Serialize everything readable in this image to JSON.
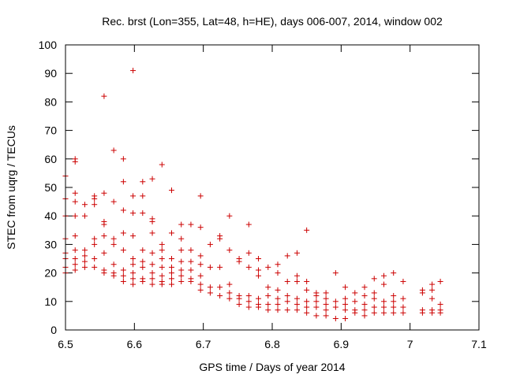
{
  "chart_data": {
    "type": "scatter",
    "title": "Rec. brst (Lon=355, Lat=48, h=HE), days 006-007, 2014, window 002",
    "xlabel": "GPS time / Days of year 2014",
    "ylabel": "STEC from uqrg / TECUs",
    "xlim": [
      6.5,
      7.1
    ],
    "ylim": [
      0,
      100
    ],
    "xticks": [
      "6.5",
      "6.6",
      "6.7",
      "6.8",
      "6.9",
      "7",
      "7.1"
    ],
    "yticks": [
      "0",
      "10",
      "20",
      "30",
      "40",
      "50",
      "60",
      "70",
      "80",
      "90",
      "100"
    ],
    "grid": false,
    "marker": "plus",
    "color": "#cc0000",
    "series": [
      {
        "name": "STEC",
        "x": [
          6.5,
          6.5,
          6.5,
          6.5,
          6.5,
          6.5,
          6.5,
          6.5,
          6.514,
          6.514,
          6.514,
          6.514,
          6.514,
          6.514,
          6.514,
          6.514,
          6.514,
          6.514,
          6.528,
          6.528,
          6.528,
          6.528,
          6.528,
          6.528,
          6.542,
          6.542,
          6.542,
          6.542,
          6.542,
          6.542,
          6.542,
          6.556,
          6.556,
          6.556,
          6.556,
          6.556,
          6.556,
          6.556,
          6.556,
          6.57,
          6.57,
          6.57,
          6.57,
          6.57,
          6.57,
          6.57,
          6.584,
          6.584,
          6.584,
          6.584,
          6.584,
          6.584,
          6.584,
          6.584,
          6.598,
          6.598,
          6.598,
          6.598,
          6.598,
          6.598,
          6.598,
          6.598,
          6.598,
          6.612,
          6.612,
          6.612,
          6.612,
          6.612,
          6.612,
          6.612,
          6.612,
          6.626,
          6.626,
          6.626,
          6.626,
          6.626,
          6.626,
          6.626,
          6.626,
          6.626,
          6.64,
          6.64,
          6.64,
          6.64,
          6.64,
          6.64,
          6.64,
          6.64,
          6.654,
          6.654,
          6.654,
          6.654,
          6.654,
          6.654,
          6.654,
          6.668,
          6.668,
          6.668,
          6.668,
          6.668,
          6.668,
          6.668,
          6.682,
          6.682,
          6.682,
          6.682,
          6.682,
          6.682,
          6.696,
          6.696,
          6.696,
          6.696,
          6.696,
          6.696,
          6.696,
          6.71,
          6.71,
          6.71,
          6.71,
          6.724,
          6.724,
          6.724,
          6.724,
          6.724,
          6.738,
          6.738,
          6.738,
          6.738,
          6.738,
          6.752,
          6.752,
          6.752,
          6.752,
          6.752,
          6.766,
          6.766,
          6.766,
          6.766,
          6.766,
          6.766,
          6.78,
          6.78,
          6.78,
          6.78,
          6.78,
          6.78,
          6.794,
          6.794,
          6.794,
          6.794,
          6.794,
          6.808,
          6.808,
          6.808,
          6.808,
          6.808,
          6.808,
          6.822,
          6.822,
          6.822,
          6.822,
          6.822,
          6.836,
          6.836,
          6.836,
          6.836,
          6.836,
          6.836,
          6.85,
          6.85,
          6.85,
          6.85,
          6.85,
          6.85,
          6.864,
          6.864,
          6.864,
          6.864,
          6.864,
          6.878,
          6.878,
          6.878,
          6.878,
          6.878,
          6.892,
          6.892,
          6.892,
          6.892,
          6.906,
          6.906,
          6.906,
          6.906,
          6.906,
          6.92,
          6.92,
          6.92,
          6.92,
          6.934,
          6.934,
          6.934,
          6.934,
          6.934,
          6.948,
          6.948,
          6.948,
          6.948,
          6.948,
          6.962,
          6.962,
          6.962,
          6.962,
          6.962,
          6.976,
          6.976,
          6.976,
          6.976,
          6.976,
          6.99,
          6.99,
          6.99,
          6.99,
          7.018,
          7.018,
          7.018,
          7.018,
          7.032,
          7.032,
          7.032,
          7.032,
          7.032,
          7.044,
          7.044,
          7.044,
          7.044
        ],
        "y": [
          20,
          22,
          25,
          27,
          32,
          40,
          46,
          54,
          21,
          23,
          25,
          28,
          33,
          40,
          45,
          48,
          59,
          60,
          22,
          24,
          26,
          28,
          40,
          44,
          22,
          25,
          30,
          32,
          44,
          46,
          47,
          20,
          21,
          27,
          33,
          37,
          38,
          48,
          82,
          19,
          20,
          23,
          30,
          32,
          45,
          63,
          17,
          19,
          21,
          28,
          34,
          42,
          52,
          60,
          16,
          18,
          20,
          23,
          25,
          33,
          41,
          47,
          91,
          17,
          18,
          22,
          24,
          28,
          41,
          47,
          52,
          16,
          18,
          20,
          23,
          27,
          34,
          38,
          39,
          53,
          16,
          17,
          19,
          22,
          25,
          28,
          30,
          58,
          16,
          18,
          20,
          22,
          25,
          34,
          49,
          17,
          19,
          21,
          24,
          28,
          32,
          37,
          17,
          18,
          21,
          24,
          28,
          37,
          14,
          16,
          19,
          23,
          26,
          36,
          47,
          13,
          15,
          22,
          30,
          12,
          15,
          22,
          32,
          33,
          11,
          13,
          16,
          28,
          40,
          9,
          11,
          12,
          24,
          25,
          8,
          10,
          12,
          22,
          27,
          37,
          8,
          9,
          11,
          19,
          21,
          25,
          7,
          9,
          12,
          15,
          22,
          7,
          9,
          11,
          14,
          20,
          23,
          7,
          10,
          12,
          17,
          26,
          7,
          9,
          11,
          17,
          19,
          27,
          6,
          8,
          10,
          14,
          17,
          35,
          5,
          8,
          10,
          12,
          13,
          5,
          7,
          9,
          11,
          13,
          4,
          8,
          10,
          20,
          4,
          7,
          9,
          11,
          15,
          6,
          7,
          10,
          13,
          5,
          7,
          9,
          12,
          15,
          6,
          8,
          11,
          13,
          18,
          6,
          8,
          10,
          16,
          19,
          6,
          8,
          10,
          12,
          20,
          6,
          8,
          11,
          17,
          6,
          7,
          13,
          14,
          6,
          7,
          11,
          14,
          16,
          6,
          7,
          9,
          17
        ]
      }
    ]
  }
}
